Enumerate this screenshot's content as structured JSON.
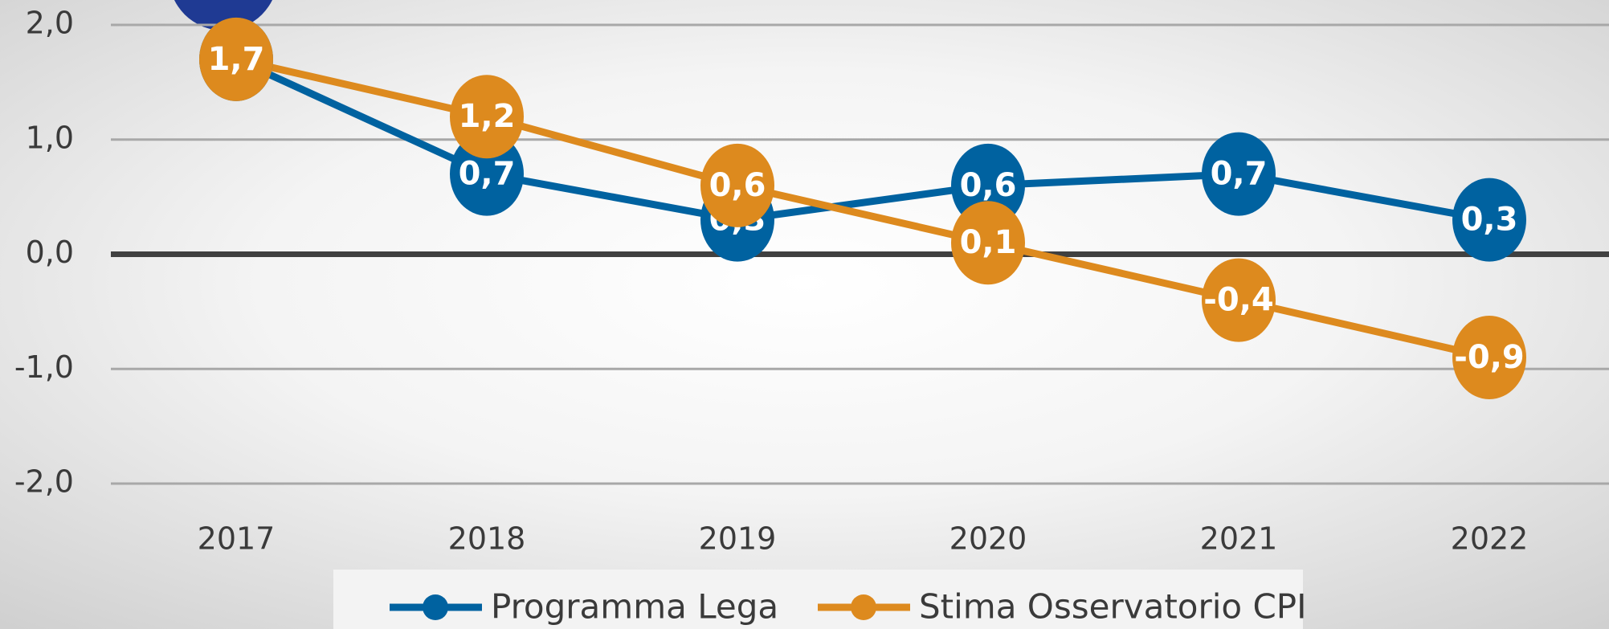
{
  "chart_data": {
    "type": "line",
    "categories": [
      "2017",
      "2018",
      "2019",
      "2020",
      "2021",
      "2022"
    ],
    "series": [
      {
        "name": "Programma Lega",
        "color": "#0062a0",
        "values": [
          1.7,
          0.7,
          0.3,
          0.6,
          0.7,
          0.3
        ],
        "value_labels": [
          "1,7",
          "0,7",
          "0,3",
          "0,6",
          "0,7",
          "0,3"
        ]
      },
      {
        "name": "Stima Osservatorio CPI",
        "color": "#dd8a1e",
        "values": [
          1.7,
          1.2,
          0.6,
          0.1,
          -0.4,
          -0.9
        ],
        "value_labels": [
          "1,7",
          "1,2",
          "0,6",
          "0,1",
          "-0,4",
          "-0,9"
        ]
      }
    ],
    "ylim": [
      -2,
      2
    ],
    "yticks": [
      {
        "value": -2,
        "label": "-2,0"
      },
      {
        "value": -1,
        "label": "-1,0"
      },
      {
        "value": 0,
        "label": "0,0"
      },
      {
        "value": 1,
        "label": "1,0"
      },
      {
        "value": 2,
        "label": "2,0"
      }
    ],
    "grid": true,
    "legend": "bottom"
  }
}
